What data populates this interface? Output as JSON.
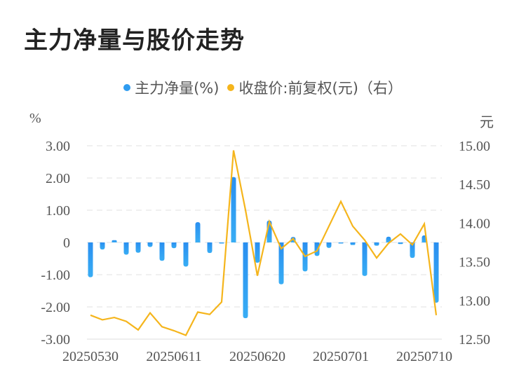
{
  "title": "主力净量与股价走势",
  "legend": {
    "items": [
      {
        "label": "主力净量(%)",
        "color": "#2f9cf0"
      },
      {
        "label": "收盘价:前复权(元)（右）",
        "color": "#f5b51c"
      }
    ]
  },
  "axes": {
    "left_unit": "%",
    "right_unit": "元"
  },
  "colors": {
    "bar_top": "#2a8ff0",
    "bar_bottom": "#38adf4",
    "line": "#f5b51c",
    "grid": "#e8e8e8",
    "tick_text": "#555555"
  },
  "chart_data": {
    "type": "bar+line",
    "title": "主力净量与股价走势",
    "legend_position": "top",
    "grid": true,
    "left_axis": {
      "label": "%",
      "ylim": [
        -3,
        3
      ],
      "ticks": [
        "3.00",
        "2.00",
        "1.00",
        "0",
        "-1.00",
        "-2.00",
        "-3.00"
      ],
      "tick_values": [
        3,
        2,
        1,
        0,
        -1,
        -2,
        -3
      ]
    },
    "right_axis": {
      "label": "元",
      "ylim": [
        12.5,
        15.0
      ],
      "ticks": [
        "15.00",
        "14.50",
        "14.00",
        "13.50",
        "13.00",
        "12.50"
      ],
      "tick_values": [
        15.0,
        14.5,
        14.0,
        13.5,
        13.0,
        12.5
      ]
    },
    "x_tick_labels": [
      {
        "index": 0,
        "label": "20250530"
      },
      {
        "index": 7,
        "label": "20250611"
      },
      {
        "index": 14,
        "label": "20250620"
      },
      {
        "index": 21,
        "label": "20250701"
      },
      {
        "index": 28,
        "label": "20250710"
      }
    ],
    "point_count": 30,
    "series": [
      {
        "name": "主力净量(%)",
        "type": "bar",
        "axis": "left",
        "values": [
          -1.08,
          -0.22,
          0.07,
          -0.38,
          -0.32,
          -0.14,
          -0.57,
          -0.18,
          -0.75,
          0.63,
          -0.33,
          -0.03,
          2.03,
          -2.35,
          -0.63,
          0.68,
          -1.3,
          0.17,
          -0.9,
          -0.42,
          -0.17,
          -0.02,
          -0.08,
          -1.04,
          -0.1,
          0.18,
          -0.05,
          -0.48,
          0.22,
          -1.87
        ]
      },
      {
        "name": "收盘价:前复权(元)（右）",
        "type": "line",
        "axis": "right",
        "values": [
          12.81,
          12.75,
          12.78,
          12.73,
          12.62,
          12.84,
          12.66,
          12.61,
          12.55,
          12.85,
          12.82,
          12.98,
          14.94,
          14.17,
          13.32,
          14.02,
          13.67,
          13.8,
          13.57,
          13.64,
          13.96,
          14.28,
          13.96,
          13.78,
          13.55,
          13.74,
          13.86,
          13.72,
          13.99,
          12.81
        ]
      }
    ]
  }
}
